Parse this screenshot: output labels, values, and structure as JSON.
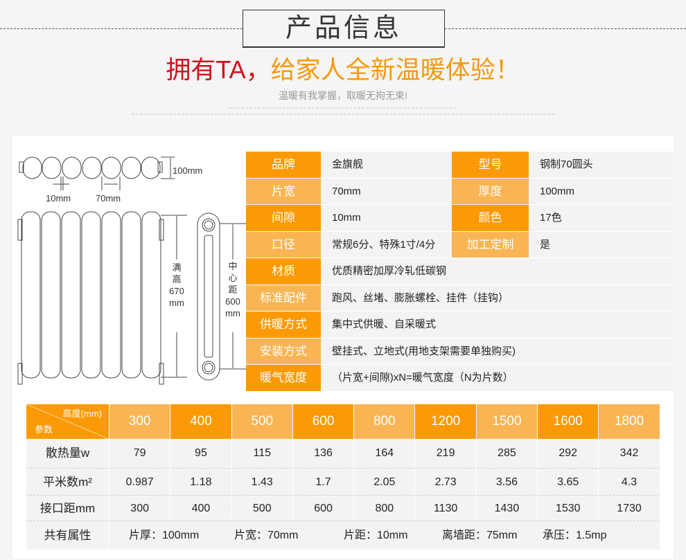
{
  "header": {
    "title": "产品信息",
    "slogan_red": "拥有TA，",
    "slogan_orange": "给家人全新温暖体验！",
    "subtitle": "温暖有我掌握，取暖无拘无束!"
  },
  "colors": {
    "orange_dark": "#fb9a06",
    "orange_light": "#f9b553",
    "slogan_red": "#d0101a",
    "slogan_orange": "#f49a10"
  },
  "diagram": {
    "depth": "100mm",
    "gap": "10mm",
    "width": "70mm",
    "full_height": [
      "满",
      "高",
      "670",
      "mm"
    ],
    "center_distance": [
      "中",
      "心",
      "距",
      "600",
      "mm"
    ]
  },
  "specs": [
    {
      "label": "品牌",
      "value": "金旗舰",
      "label2": "型号",
      "value2": "钢制70圆头"
    },
    {
      "label": "片宽",
      "value": "70mm",
      "label2": "厚度",
      "value2": "100mm"
    },
    {
      "label": "间隙",
      "value": "10mm",
      "label2": "颜色",
      "value2": "17色"
    },
    {
      "label": "口径",
      "value": "常规6分、特殊1寸/4分",
      "label2": "加工定制",
      "value2": "是"
    },
    {
      "label": "材质",
      "value": "优质精密加厚冷轧低碳钢"
    },
    {
      "label": "标准配件",
      "value": "跑风、丝堵、膨胀螺栓、挂件（挂钩）"
    },
    {
      "label": "供暖方式",
      "value": "集中式供暖、自采暖式"
    },
    {
      "label": "安装方式",
      "value": "壁挂式、立地式(用地支架需要单独购买)"
    },
    {
      "label": "暖气宽度",
      "value": "（片宽+间隙)xN=暖气宽度（N为片数）"
    }
  ],
  "table": {
    "corner_top": "高度(mm)",
    "corner_bottom": "参数",
    "heights": [
      "300",
      "400",
      "500",
      "600",
      "800",
      "1200",
      "1500",
      "1600",
      "1800"
    ],
    "rows": [
      {
        "label": "散热量w",
        "values": [
          "79",
          "95",
          "115",
          "136",
          "164",
          "219",
          "285",
          "292",
          "342"
        ]
      },
      {
        "label": "平米数m²",
        "values": [
          "0.987",
          "1.18",
          "1.43",
          "1.7",
          "2.05",
          "2.73",
          "3.56",
          "3.65",
          "4.3"
        ]
      },
      {
        "label": "接口距mm",
        "values": [
          "300",
          "400",
          "500",
          "600",
          "800",
          "1130",
          "1430",
          "1530",
          "1730"
        ]
      }
    ],
    "common_label": "共有属性",
    "common": [
      "片厚：100mm",
      "片宽：70mm",
      "片距：10mm",
      "离墙距：75mm",
      "承压：1.5mp"
    ]
  }
}
